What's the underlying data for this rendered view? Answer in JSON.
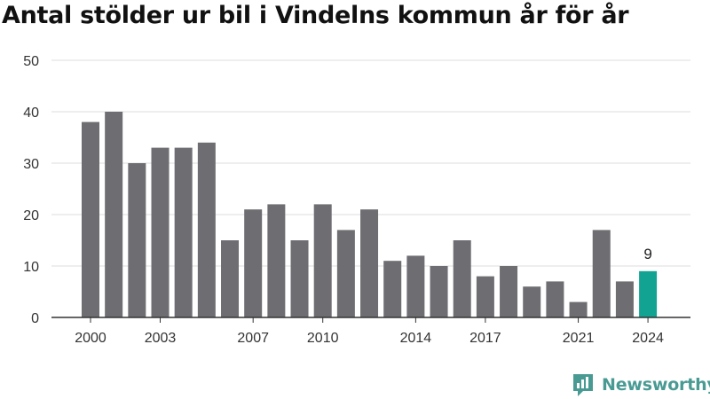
{
  "title": "Antal stölder ur bil i Vindelns kommun år för år",
  "brand": "Newsworthy",
  "colors": {
    "bar": "#6e6d72",
    "highlight": "#13a393",
    "grid": "#dddddd",
    "axis": "#333333",
    "brand": "#4a9a94"
  },
  "chart_data": {
    "type": "bar",
    "title": "Antal stölder ur bil i Vindelns kommun år för år",
    "xlabel": "",
    "ylabel": "",
    "x": [
      2000,
      2001,
      2002,
      2003,
      2004,
      2005,
      2006,
      2007,
      2008,
      2009,
      2010,
      2011,
      2012,
      2013,
      2014,
      2015,
      2016,
      2017,
      2018,
      2019,
      2020,
      2021,
      2022,
      2023,
      2024
    ],
    "values": [
      38,
      40,
      30,
      33,
      33,
      34,
      15,
      21,
      22,
      15,
      22,
      17,
      21,
      11,
      12,
      10,
      15,
      8,
      10,
      6,
      7,
      3,
      17,
      7,
      9
    ],
    "ylim": [
      0,
      50
    ],
    "yticks": [
      0,
      10,
      20,
      30,
      40,
      50
    ],
    "xticks": [
      2000,
      2003,
      2007,
      2010,
      2014,
      2017,
      2021,
      2024
    ],
    "highlight": {
      "year": 2024,
      "label": "9"
    },
    "grid": true,
    "legend": "none"
  }
}
